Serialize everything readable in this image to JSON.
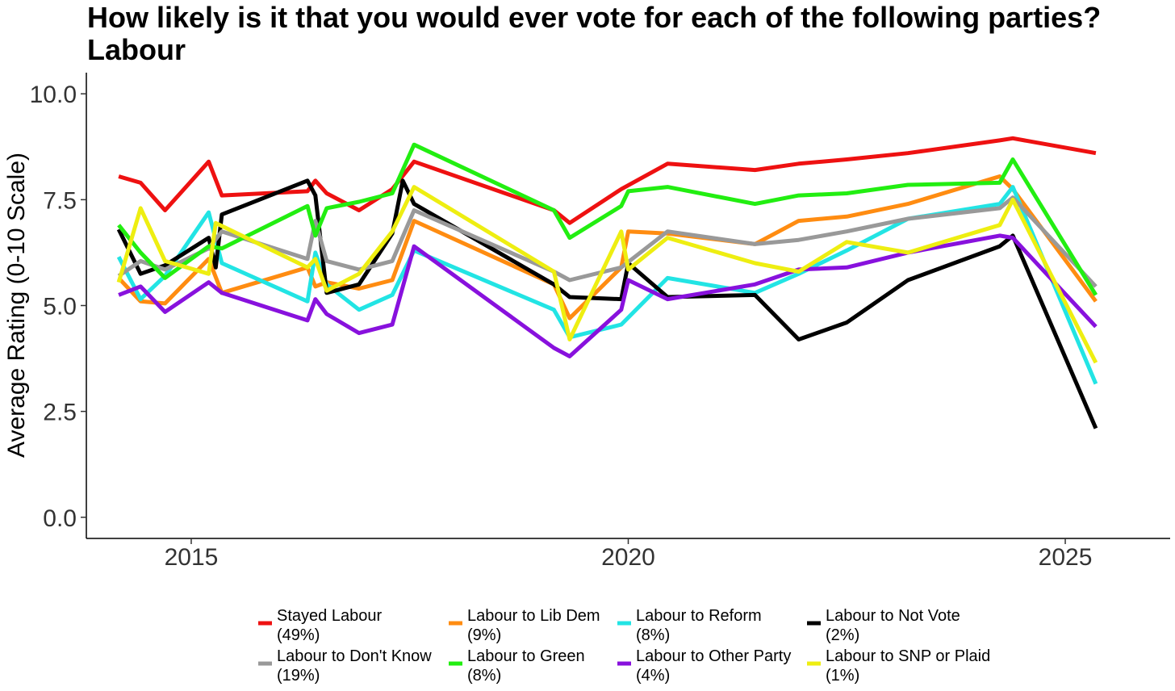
{
  "chart_data": {
    "type": "line",
    "title": "How likely is it that you would ever vote for each of the following parties?",
    "subtitle": "Labour",
    "xlabel": "",
    "ylabel": "Average Rating (0-10 Scale)",
    "xlim": [
      2013.8,
      2026.2
    ],
    "ylim": [
      -0.5,
      10.5
    ],
    "x_ticks": [
      2015,
      2020,
      2025
    ],
    "x_tick_labels": [
      "2015",
      "2020",
      "2025"
    ],
    "y_ticks": [
      0,
      2.5,
      5,
      7.5,
      10
    ],
    "y_tick_labels": [
      "0.0",
      "2.5",
      "5.0",
      "7.5",
      "10.0"
    ],
    "grid": false,
    "legend_position": "bottom",
    "series": [
      {
        "name": "Stayed Labour",
        "share": "(49%)",
        "color": "#ee1111",
        "x": [
          2014.17,
          2014.42,
          2014.7,
          2015.2,
          2015.35,
          2016.33,
          2016.42,
          2016.55,
          2016.92,
          2017.3,
          2017.55,
          2019.15,
          2019.33,
          2019.92,
          2020.45,
          2021.45,
          2021.95,
          2022.5,
          2023.2,
          2024.25,
          2024.4,
          2025.35
        ],
        "y": [
          8.05,
          7.9,
          7.25,
          8.4,
          7.6,
          7.7,
          7.95,
          7.65,
          7.25,
          7.75,
          8.4,
          7.25,
          6.95,
          7.75,
          8.35,
          8.2,
          8.35,
          8.45,
          8.6,
          8.9,
          8.95,
          8.6
        ]
      },
      {
        "name": "Labour to Lib Dem",
        "share": "(9%)",
        "color": "#ff8c11",
        "x": [
          2014.17,
          2014.42,
          2014.7,
          2015.2,
          2015.35,
          2016.33,
          2016.42,
          2016.55,
          2016.92,
          2017.3,
          2017.55,
          2019.15,
          2019.33,
          2019.92,
          2020.0,
          2020.45,
          2021.45,
          2021.95,
          2022.5,
          2023.2,
          2024.25,
          2024.4,
          2025.35
        ],
        "y": [
          5.65,
          5.1,
          5.05,
          6.1,
          5.3,
          5.9,
          5.45,
          5.55,
          5.4,
          5.6,
          7.0,
          5.5,
          4.7,
          5.9,
          6.75,
          6.7,
          6.45,
          7.0,
          7.1,
          7.4,
          8.05,
          7.75,
          5.1
        ]
      },
      {
        "name": "Labour to Reform",
        "share": "(8%)",
        "color": "#22e4e4",
        "x": [
          2014.17,
          2014.42,
          2014.7,
          2015.2,
          2015.35,
          2016.33,
          2016.42,
          2016.55,
          2016.92,
          2017.3,
          2017.55,
          2019.15,
          2019.33,
          2019.92,
          2020.45,
          2021.45,
          2021.95,
          2022.5,
          2023.2,
          2024.25,
          2024.4,
          2025.35
        ],
        "y": [
          6.15,
          5.15,
          5.7,
          7.2,
          6.0,
          5.1,
          6.25,
          5.5,
          4.9,
          5.25,
          6.3,
          4.9,
          4.25,
          4.55,
          5.65,
          5.3,
          5.75,
          6.3,
          7.05,
          7.4,
          7.8,
          3.15
        ]
      },
      {
        "name": "Labour to Not Vote",
        "share": "(2%)",
        "color": "#000000",
        "x": [
          2014.17,
          2014.42,
          2014.7,
          2015.2,
          2015.28,
          2015.35,
          2016.33,
          2016.42,
          2016.55,
          2016.92,
          2017.3,
          2017.42,
          2017.55,
          2019.15,
          2019.33,
          2019.92,
          2020.0,
          2020.45,
          2021.45,
          2021.95,
          2022.5,
          2023.2,
          2024.25,
          2024.4,
          2025.35
        ],
        "y": [
          6.8,
          5.75,
          5.95,
          6.6,
          5.9,
          7.15,
          7.95,
          7.6,
          5.3,
          5.5,
          6.7,
          7.95,
          7.4,
          5.5,
          5.2,
          5.15,
          6.0,
          5.2,
          5.25,
          4.2,
          4.6,
          5.6,
          6.4,
          6.65,
          2.1
        ]
      },
      {
        "name": "Labour to Don't Know",
        "share": "(19%)",
        "color": "#999999",
        "x": [
          2014.17,
          2014.42,
          2014.7,
          2015.2,
          2015.35,
          2016.33,
          2016.42,
          2016.55,
          2016.92,
          2017.3,
          2017.55,
          2019.15,
          2019.33,
          2019.92,
          2020.45,
          2021.45,
          2021.95,
          2022.5,
          2023.2,
          2024.25,
          2024.4,
          2025.35
        ],
        "y": [
          5.7,
          6.05,
          5.85,
          6.35,
          6.75,
          6.1,
          7.0,
          6.05,
          5.85,
          6.05,
          7.25,
          5.8,
          5.6,
          5.9,
          6.75,
          6.45,
          6.55,
          6.75,
          7.05,
          7.3,
          7.55,
          5.45
        ]
      },
      {
        "name": "Labour to Green",
        "share": "(8%)",
        "color": "#22ee11",
        "x": [
          2014.17,
          2014.42,
          2014.7,
          2015.2,
          2015.35,
          2016.33,
          2016.42,
          2016.55,
          2016.92,
          2017.3,
          2017.55,
          2019.15,
          2019.33,
          2019.92,
          2020.0,
          2020.45,
          2021.45,
          2021.95,
          2022.5,
          2023.2,
          2024.25,
          2024.4,
          2025.35
        ],
        "y": [
          6.9,
          6.25,
          5.65,
          6.4,
          6.35,
          7.35,
          6.65,
          7.3,
          7.45,
          7.65,
          8.8,
          7.25,
          6.6,
          7.35,
          7.7,
          7.8,
          7.4,
          7.6,
          7.65,
          7.85,
          7.9,
          8.45,
          5.25
        ]
      },
      {
        "name": "Labour to Other Party",
        "share": "(4%)",
        "color": "#8811dd",
        "x": [
          2014.17,
          2014.42,
          2014.7,
          2015.2,
          2015.35,
          2016.33,
          2016.42,
          2016.55,
          2016.92,
          2017.3,
          2017.55,
          2019.15,
          2019.33,
          2019.92,
          2020.0,
          2020.45,
          2021.45,
          2021.95,
          2022.5,
          2023.2,
          2024.25,
          2024.4,
          2025.35
        ],
        "y": [
          5.25,
          5.45,
          4.85,
          5.55,
          5.3,
          4.65,
          5.15,
          4.8,
          4.35,
          4.55,
          6.4,
          4.0,
          3.8,
          4.9,
          5.6,
          5.15,
          5.5,
          5.85,
          5.9,
          6.25,
          6.65,
          6.6,
          4.5
        ]
      },
      {
        "name": "Labour to SNP or Plaid",
        "share": "(1%)",
        "color": "#eeee11",
        "x": [
          2014.17,
          2014.42,
          2014.7,
          2015.2,
          2015.28,
          2016.33,
          2016.42,
          2016.55,
          2016.92,
          2017.3,
          2017.55,
          2019.15,
          2019.33,
          2019.92,
          2020.0,
          2020.45,
          2021.45,
          2021.95,
          2022.5,
          2023.2,
          2024.25,
          2024.4,
          2025.35
        ],
        "y": [
          5.55,
          7.3,
          6.05,
          5.75,
          6.95,
          5.9,
          6.1,
          5.35,
          5.75,
          6.75,
          7.8,
          5.8,
          4.2,
          6.75,
          5.85,
          6.6,
          6.0,
          5.8,
          6.5,
          6.25,
          6.9,
          7.5,
          3.65
        ]
      }
    ]
  }
}
